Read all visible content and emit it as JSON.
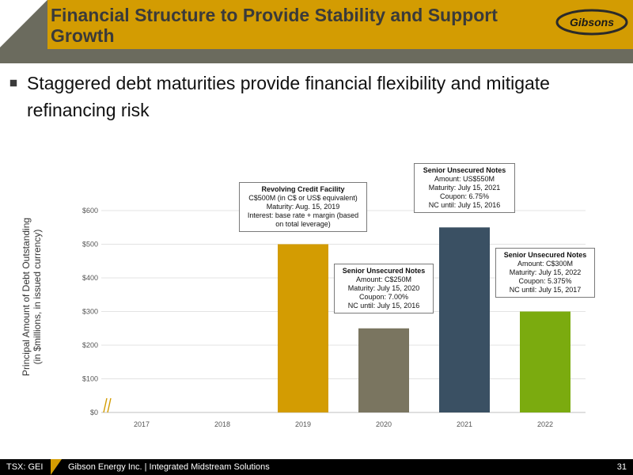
{
  "header": {
    "title": "Financial Structure to Provide Stability and Support Growth",
    "logo_text": "Gibsons",
    "colors": {
      "band": "#d39c02",
      "dark_band": "#6b6b5e",
      "logo_accent": "#d39c02"
    }
  },
  "bullet": {
    "text": "Staggered debt maturities provide financial flexibility and mitigate refinancing risk"
  },
  "chart_data": {
    "type": "bar",
    "categories": [
      "2017",
      "2018",
      "2019",
      "2020",
      "2021",
      "2022"
    ],
    "values": [
      0,
      0,
      500,
      250,
      550,
      300
    ],
    "colors": [
      "#d39c02",
      "#d39c02",
      "#d39c02",
      "#7a7560",
      "#3a5063",
      "#7bab0f"
    ],
    "ylabel": "Principal Amount of Debt Outstanding (in $millions, in issued currency)",
    "ylabel_lines": [
      "Principal Amount of Debt Outstanding",
      "(in $millions, in issued currency)"
    ],
    "yticks": [
      "$0",
      "$100",
      "$200",
      "$300",
      "$400",
      "$500",
      "$600"
    ],
    "ylim": [
      0,
      600
    ],
    "grid": true,
    "annotations": [
      {
        "category": "2019",
        "title": "Revolving Credit Facility",
        "lines": [
          "C$500M (in C$ or US$ equivalent)",
          "Maturity: Aug. 15, 2019",
          "Interest: base rate + margin (based on total leverage)"
        ]
      },
      {
        "category": "2020",
        "title": "Senior Unsecured Notes",
        "lines": [
          "Amount: C$250M",
          "Maturity: July 15, 2020",
          "Coupon: 7.00%",
          "NC until: July 15, 2016"
        ]
      },
      {
        "category": "2021",
        "title": "Senior Unsecured Notes",
        "lines": [
          "Amount: US$550M",
          "Maturity: July 15, 2021",
          "Coupon: 6.75%",
          "NC until: July 15, 2016"
        ]
      },
      {
        "category": "2022",
        "title": "Senior Unsecured Notes",
        "lines": [
          "Amount: C$300M",
          "Maturity: July 15, 2022",
          "Coupon: 5.375%",
          "NC until: July 15, 2017"
        ]
      }
    ]
  },
  "footer": {
    "ticker": "TSX: GEI",
    "company": "Gibson Energy Inc.   |   Integrated Midstream Solutions",
    "page": "31"
  }
}
